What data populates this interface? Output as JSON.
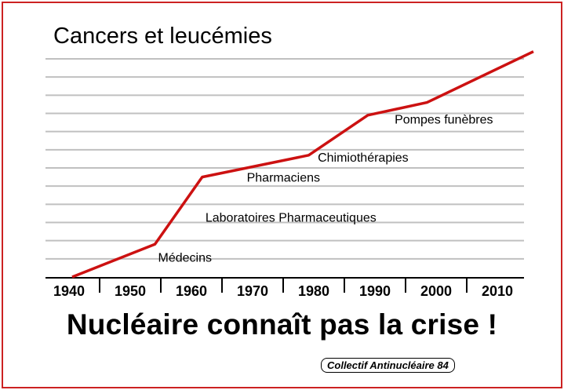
{
  "title": "Cancers et leucémies",
  "slogan": "Nucléaire connaît pas la crise !",
  "credit": "Collectif Antinucléaire 84",
  "colors": {
    "frame": "#cc2222",
    "line": "#cc1111",
    "grid": "#c0c0c0",
    "axis": "#000000"
  },
  "chart_data": {
    "type": "line",
    "title": "Cancers et leucémies",
    "xlabel": "",
    "ylabel": "",
    "x_ticks": [
      "1940",
      "1950",
      "1960",
      "1970",
      "1980",
      "1990",
      "2000",
      "2010"
    ],
    "xlim": [
      1940,
      2018
    ],
    "ylim": [
      0,
      12
    ],
    "grid": true,
    "series": [
      {
        "x": [
          1940,
          1954,
          1962,
          1980,
          1990,
          2000,
          2018
        ],
        "y": [
          0,
          1.8,
          5.5,
          6.7,
          8.9,
          9.6,
          12.4
        ]
      }
    ],
    "annotations": [
      {
        "text": "Médecins",
        "x": 1954,
        "y": 1.1
      },
      {
        "text": "Laboratoires Pharmaceutiques",
        "x": 1962,
        "y": 3.3
      },
      {
        "text": "Pharmaciens",
        "x": 1969,
        "y": 5.5
      },
      {
        "text": "Chimiothérapies",
        "x": 1981,
        "y": 6.6
      },
      {
        "text": "Pompes funèbres",
        "x": 1994,
        "y": 8.7
      }
    ]
  }
}
